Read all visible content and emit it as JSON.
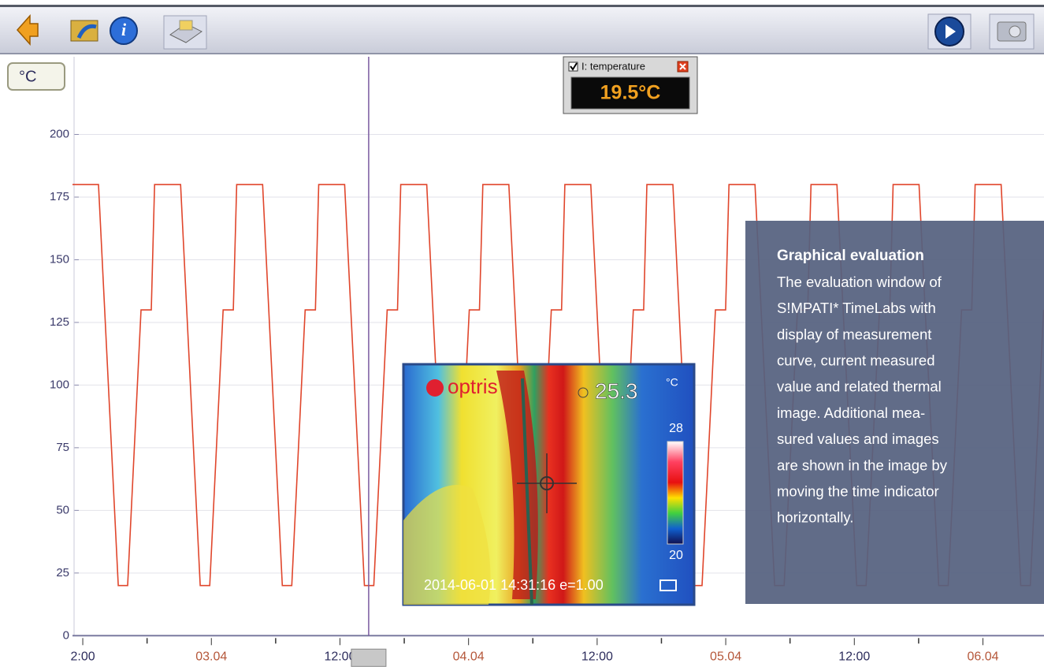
{
  "chart_data": {
    "type": "line",
    "x": [
      -0.96,
      1.47,
      3.31,
      4.19,
      5.44,
      6.39,
      6.7,
      9.13,
      10.96,
      11.85,
      13.1,
      14.05,
      14.36,
      16.78,
      18.62,
      19.5,
      20.75,
      21.71,
      22.02,
      24.44,
      26.28,
      27.16,
      28.41,
      29.37,
      29.67,
      32.1,
      33.94,
      34.82,
      36.07,
      37.02,
      37.33,
      39.76,
      41.59,
      42.47,
      43.72,
      44.68,
      44.99,
      47.41,
      49.25,
      50.13,
      51.38,
      52.34,
      52.64,
      55.07,
      56.91,
      57.79,
      59.04,
      59.99,
      60.3,
      62.73,
      64.56,
      65.45,
      66.69,
      67.65,
      67.96,
      70.38,
      72.22,
      73.1,
      74.35,
      75.31,
      75.62,
      78.04,
      79.88,
      80.76,
      82.01,
      82.96,
      83.27,
      85.7,
      87.53,
      88.42,
      89.66
    ],
    "values": [
      180,
      180,
      20,
      20,
      130,
      130,
      180,
      180,
      20,
      20,
      130,
      130,
      180,
      180,
      20,
      20,
      130,
      130,
      180,
      180,
      20,
      20,
      130,
      130,
      180,
      180,
      20,
      20,
      130,
      130,
      180,
      180,
      20,
      20,
      130,
      130,
      180,
      180,
      20,
      20,
      130,
      130,
      180,
      180,
      20,
      20,
      130,
      130,
      180,
      180,
      20,
      20,
      130,
      130,
      180,
      180,
      20,
      20,
      130,
      130,
      180,
      180,
      20,
      20,
      130,
      130,
      180,
      180,
      20,
      20,
      130
    ],
    "color": "#e0462c",
    "unit_button": "°C",
    "xlim": [
      -0.96,
      89.7
    ],
    "xticks": [
      {
        "value": 0,
        "label": "2:00"
      },
      {
        "value": 12,
        "label": "03.04"
      },
      {
        "value": 24,
        "label": "12:00"
      },
      {
        "value": 36,
        "label": "04.04"
      },
      {
        "value": 48,
        "label": "12:00"
      },
      {
        "value": 60,
        "label": "05.04"
      },
      {
        "value": 72,
        "label": "12:00"
      },
      {
        "value": 84,
        "label": "06.04"
      }
    ],
    "xtick_colors": [
      "#2c2c5c",
      "#b5573a",
      "#2c2c5c",
      "#b5573a",
      "#2c2c5c",
      "#b5573a",
      "#2c2c5c",
      "#b5573a"
    ],
    "xminor_ticks": [
      6,
      18,
      30,
      42,
      54,
      66,
      78
    ],
    "ylim": [
      -4,
      231
    ],
    "yticks": [
      0,
      25,
      50,
      75,
      100,
      125,
      150,
      175,
      200
    ],
    "grid": true,
    "time_indicator": 26.68
  },
  "readout": {
    "label": "I: temperature",
    "value": "19.5°C"
  },
  "thermal_image": {
    "brand": "optris",
    "spot_value": "25.3",
    "unit": "°C",
    "scale_max": "28",
    "scale_min": "20",
    "footer": "2014-06-01 14:31:16 e=1.00"
  },
  "info_box": {
    "title": "Graphical evaluation",
    "lines": [
      "The evaluation window of",
      "S!MPATI* TimeLabs with",
      "display of measurement",
      "curve, current measured",
      "value and related thermal",
      "image. Additional mea-",
      "sured values and images",
      "are shown in the image by",
      "moving the time indicator",
      "horizontally."
    ]
  }
}
